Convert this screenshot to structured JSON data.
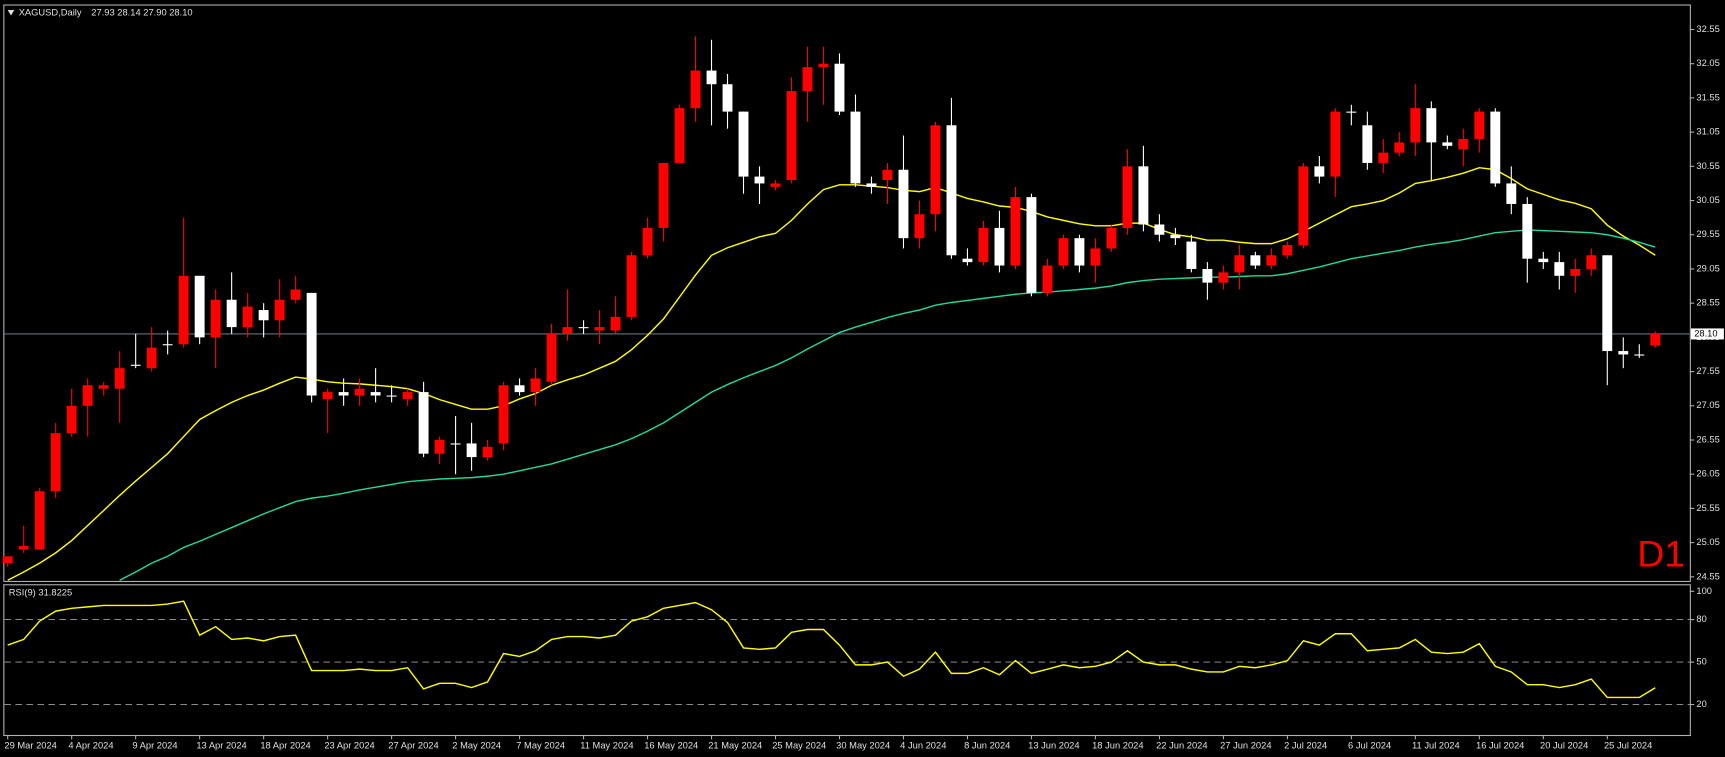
{
  "chart_data": [
    {
      "type": "candlestick",
      "title": "XAGUSD,Daily",
      "subtitle": "27.93 28.14 27.90 28.10",
      "annotation": "D1",
      "categories": [
        "29 Mar 2024",
        null,
        null,
        null,
        "4 Apr 2024",
        null,
        null,
        null,
        "9 Apr 2024",
        null,
        null,
        null,
        "13 Apr 2024",
        null,
        null,
        null,
        "18 Apr 2024",
        null,
        null,
        null,
        "23 Apr 2024",
        null,
        null,
        null,
        "27 Apr 2024",
        null,
        null,
        null,
        "2 May 2024",
        null,
        null,
        null,
        "7 May 2024",
        null,
        null,
        null,
        "11 May 2024",
        null,
        null,
        null,
        "16 May 2024",
        null,
        null,
        null,
        "21 May 2024",
        null,
        null,
        null,
        "25 May 2024",
        null,
        null,
        null,
        "30 May 2024",
        null,
        null,
        null,
        "4 Jun 2024",
        null,
        null,
        null,
        "8 Jun 2024",
        null,
        null,
        null,
        "13 Jun 2024",
        null,
        null,
        null,
        "18 Jun 2024",
        null,
        null,
        null,
        "22 Jun 2024",
        null,
        null,
        null,
        "27 Jun 2024",
        null,
        null,
        null,
        "2 Jul 2024",
        null,
        null,
        null,
        "6 Jul 2024",
        null,
        null,
        null,
        "11 Jul 2024",
        null,
        null,
        null,
        "16 Jul 2024",
        null,
        null,
        null,
        "20 Jul 2024",
        null,
        null,
        null,
        "25 Jul 2024",
        null,
        null,
        null
      ],
      "open": [
        24.75,
        24.95,
        24.95,
        25.8,
        26.65,
        27.05,
        27.3,
        27.3,
        27.65,
        27.6,
        27.95,
        27.95,
        28.95,
        28.05,
        28.6,
        28.2,
        28.45,
        28.3,
        28.6,
        28.7,
        27.15,
        27.25,
        27.2,
        27.25,
        27.2,
        27.15,
        27.25,
        26.35,
        26.5,
        26.5,
        26.3,
        26.5,
        27.35,
        27.25,
        27.4,
        28.1,
        28.2,
        28.15,
        28.15,
        28.35,
        29.25,
        29.65,
        30.6,
        31.4,
        31.95,
        31.75,
        31.35,
        30.4,
        30.25,
        30.35,
        31.65,
        32.0,
        32.05,
        31.35,
        30.3,
        30.35,
        30.5,
        29.5,
        29.85,
        31.15,
        29.2,
        29.15,
        29.65,
        29.1,
        30.1,
        28.7,
        29.1,
        29.5,
        29.1,
        29.35,
        29.65,
        30.55,
        29.7,
        29.55,
        29.45,
        29.05,
        28.85,
        29.0,
        29.25,
        29.1,
        29.25,
        29.4,
        30.55,
        30.4,
        31.35,
        31.15,
        30.6,
        30.75,
        30.9,
        31.4,
        30.9,
        30.8,
        30.95,
        31.35,
        30.3,
        30.0,
        29.2,
        29.15,
        28.95,
        29.05,
        29.25,
        27.85,
        27.8,
        27.93
      ],
      "high": [
        24.85,
        25.3,
        25.85,
        26.8,
        27.3,
        27.45,
        27.4,
        27.85,
        28.1,
        28.2,
        28.15,
        29.8,
        28.95,
        28.75,
        29.0,
        28.7,
        28.55,
        28.9,
        28.95,
        28.7,
        27.3,
        27.45,
        27.45,
        27.6,
        27.35,
        27.3,
        27.4,
        26.6,
        26.9,
        26.8,
        26.55,
        27.4,
        27.45,
        27.6,
        28.25,
        28.75,
        28.3,
        28.45,
        28.65,
        29.3,
        29.8,
        30.6,
        31.45,
        32.45,
        32.4,
        31.9,
        31.35,
        30.55,
        30.35,
        31.85,
        32.3,
        32.3,
        32.2,
        31.6,
        30.4,
        30.6,
        31.0,
        30.05,
        31.2,
        31.55,
        29.35,
        29.75,
        29.9,
        30.25,
        30.15,
        29.2,
        29.55,
        29.55,
        29.5,
        29.7,
        30.8,
        30.85,
        29.85,
        29.65,
        29.55,
        29.15,
        29.1,
        29.4,
        29.3,
        29.35,
        29.45,
        30.6,
        30.7,
        31.4,
        31.45,
        31.35,
        30.95,
        31.05,
        31.75,
        31.5,
        31.0,
        31.1,
        31.4,
        31.4,
        30.55,
        30.1,
        29.3,
        29.3,
        29.2,
        29.35,
        29.25,
        28.05,
        27.95,
        28.14
      ],
      "low": [
        24.7,
        24.9,
        24.95,
        25.7,
        26.6,
        26.6,
        27.2,
        26.8,
        27.6,
        27.55,
        27.8,
        27.9,
        27.95,
        27.6,
        28.1,
        28.05,
        28.05,
        28.05,
        28.55,
        27.1,
        26.65,
        27.05,
        27.05,
        27.1,
        27.1,
        27.05,
        26.3,
        26.2,
        26.05,
        26.1,
        26.25,
        26.4,
        27.2,
        27.05,
        27.35,
        28.0,
        28.1,
        27.95,
        28.1,
        28.3,
        29.2,
        29.45,
        30.6,
        31.2,
        31.15,
        31.1,
        30.15,
        30.0,
        30.2,
        30.3,
        31.2,
        31.45,
        31.3,
        30.25,
        30.15,
        30.0,
        29.35,
        29.35,
        29.6,
        29.2,
        29.1,
        29.1,
        29.0,
        29.05,
        28.65,
        28.65,
        29.05,
        29.0,
        28.85,
        29.3,
        29.55,
        29.6,
        29.45,
        29.4,
        29.0,
        28.6,
        28.75,
        28.75,
        29.05,
        29.05,
        29.2,
        29.35,
        30.3,
        30.1,
        31.15,
        30.5,
        30.45,
        30.7,
        30.7,
        30.35,
        30.8,
        30.55,
        30.75,
        30.25,
        29.85,
        28.85,
        29.05,
        28.75,
        28.7,
        28.95,
        27.35,
        27.6,
        27.75,
        27.9
      ],
      "close": [
        24.85,
        25.0,
        25.8,
        26.65,
        27.05,
        27.35,
        27.35,
        27.6,
        27.65,
        27.9,
        27.95,
        28.95,
        28.05,
        28.6,
        28.2,
        28.5,
        28.3,
        28.6,
        28.75,
        27.2,
        27.25,
        27.2,
        27.3,
        27.2,
        27.2,
        27.25,
        26.35,
        26.55,
        26.5,
        26.3,
        26.45,
        27.35,
        27.25,
        27.45,
        28.1,
        28.2,
        28.2,
        28.2,
        28.35,
        29.25,
        29.65,
        30.6,
        31.4,
        31.95,
        31.75,
        31.35,
        30.4,
        30.3,
        30.3,
        31.65,
        32.0,
        32.05,
        31.35,
        30.3,
        30.25,
        30.5,
        29.5,
        29.85,
        31.15,
        29.25,
        29.15,
        29.65,
        29.1,
        30.1,
        28.7,
        29.1,
        29.5,
        29.1,
        29.35,
        29.65,
        30.55,
        29.7,
        29.55,
        29.5,
        29.05,
        28.85,
        29.0,
        29.25,
        29.1,
        29.25,
        29.4,
        30.55,
        30.4,
        31.35,
        31.35,
        30.6,
        30.75,
        30.9,
        31.4,
        30.9,
        30.85,
        30.95,
        31.35,
        30.3,
        30.0,
        29.2,
        29.15,
        28.95,
        29.05,
        29.25,
        27.85,
        27.8,
        27.8,
        28.1
      ],
      "up_color": "#ff0000",
      "down_color": "#ffffff",
      "series": [
        {
          "color": "#ffff00",
          "values": [
            24.5,
            24.62,
            24.75,
            24.9,
            25.08,
            25.3,
            25.52,
            25.74,
            25.95,
            26.15,
            26.35,
            26.6,
            26.85,
            26.98,
            27.1,
            27.2,
            27.28,
            27.38,
            27.47,
            27.44,
            27.4,
            27.38,
            27.37,
            27.35,
            27.33,
            27.3,
            27.23,
            27.14,
            27.07,
            27.0,
            27.0,
            27.05,
            27.15,
            27.23,
            27.35,
            27.43,
            27.5,
            27.6,
            27.7,
            27.87,
            28.08,
            28.32,
            28.64,
            28.96,
            29.25,
            29.36,
            29.44,
            29.52,
            29.57,
            29.76,
            30.0,
            30.21,
            30.28,
            30.28,
            30.26,
            30.24,
            30.2,
            30.18,
            30.24,
            30.16,
            30.08,
            30.03,
            29.97,
            29.95,
            29.89,
            29.81,
            29.76,
            29.71,
            29.68,
            29.68,
            29.72,
            29.72,
            29.63,
            29.55,
            29.52,
            29.47,
            29.47,
            29.44,
            29.42,
            29.42,
            29.49,
            29.6,
            29.72,
            29.84,
            29.96,
            30.0,
            30.05,
            30.16,
            30.3,
            30.34,
            30.39,
            30.45,
            30.53,
            30.5,
            30.37,
            30.22,
            30.14,
            30.06,
            30.01,
            29.93,
            29.69,
            29.53,
            29.4,
            29.25
          ]
        },
        {
          "color": "#20d8a0",
          "values": [
            null,
            null,
            null,
            null,
            null,
            null,
            null,
            24.5,
            24.62,
            24.75,
            24.85,
            24.98,
            25.07,
            25.17,
            25.27,
            25.37,
            25.47,
            25.56,
            25.65,
            25.7,
            25.73,
            25.77,
            25.82,
            25.86,
            25.9,
            25.94,
            25.96,
            25.98,
            25.99,
            26.0,
            26.02,
            26.05,
            26.1,
            26.15,
            26.2,
            26.27,
            26.34,
            26.41,
            26.48,
            26.57,
            26.68,
            26.8,
            26.95,
            27.1,
            27.25,
            27.36,
            27.46,
            27.55,
            27.64,
            27.75,
            27.88,
            28.0,
            28.12,
            28.2,
            28.27,
            28.34,
            28.4,
            28.45,
            28.52,
            28.56,
            28.59,
            28.62,
            28.65,
            28.68,
            28.7,
            28.71,
            28.73,
            28.75,
            28.77,
            28.8,
            28.85,
            28.88,
            28.9,
            28.91,
            28.92,
            28.93,
            28.93,
            28.94,
            28.95,
            28.95,
            28.98,
            29.03,
            29.08,
            29.14,
            29.2,
            29.24,
            29.28,
            29.32,
            29.37,
            29.41,
            29.44,
            29.48,
            29.53,
            29.58,
            29.6,
            29.62,
            29.61,
            29.6,
            29.59,
            29.58,
            29.55,
            29.5,
            29.44,
            29.37
          ]
        }
      ],
      "current_price": {
        "value": 28.1,
        "label": "28.10"
      },
      "ylim": [
        24.49,
        32.9
      ],
      "yticks": [
        {
          "value": 32.55,
          "label": "32.55"
        },
        {
          "value": 32.05,
          "label": "32.05"
        },
        {
          "value": 31.55,
          "label": "31.55"
        },
        {
          "value": 31.05,
          "label": "31.05"
        },
        {
          "value": 30.55,
          "label": "30.55"
        },
        {
          "value": 30.05,
          "label": "30.05"
        },
        {
          "value": 29.55,
          "label": "29.55"
        },
        {
          "value": 29.05,
          "label": "29.05"
        },
        {
          "value": 28.55,
          "label": "28.55"
        },
        {
          "value": 28.05,
          "label": "28.05"
        },
        {
          "value": 27.55,
          "label": "27.55"
        },
        {
          "value": 27.05,
          "label": "27.05"
        },
        {
          "value": 26.55,
          "label": "26.55"
        },
        {
          "value": 26.05,
          "label": "26.05"
        },
        {
          "value": 25.55,
          "label": "25.55"
        },
        {
          "value": 25.05,
          "label": "25.05"
        },
        {
          "value": 24.55,
          "label": "24.55"
        }
      ],
      "grid": false
    },
    {
      "type": "line",
      "title": "RSI(9) 31.8225",
      "color": "#ffff00",
      "values": [
        62,
        66,
        79,
        86,
        88,
        89,
        90,
        90,
        90,
        90,
        91,
        93,
        69,
        75,
        66,
        67,
        65,
        68,
        69,
        44,
        44,
        44,
        45,
        44,
        44,
        46,
        31,
        35,
        35,
        32,
        36,
        56,
        54,
        58,
        66,
        68,
        68,
        67,
        69,
        79,
        82,
        88,
        90,
        92,
        87,
        78,
        60,
        59,
        60,
        71,
        73,
        73,
        62,
        48,
        48,
        50,
        40,
        45,
        57,
        42,
        42,
        46,
        41,
        51,
        42,
        45,
        48,
        46,
        47,
        50,
        58,
        50,
        48,
        48,
        45,
        43,
        43,
        47,
        46,
        48,
        51,
        65,
        62,
        70,
        70,
        58,
        59,
        60,
        66,
        57,
        56,
        57,
        63,
        47,
        43,
        34,
        34,
        32,
        34,
        38,
        25,
        25,
        25,
        31.82
      ],
      "ylim": [
        -1.5,
        105
      ],
      "yticks": [
        100,
        80,
        50,
        20
      ],
      "levels": [
        80,
        50,
        20
      ],
      "grid": false
    }
  ]
}
